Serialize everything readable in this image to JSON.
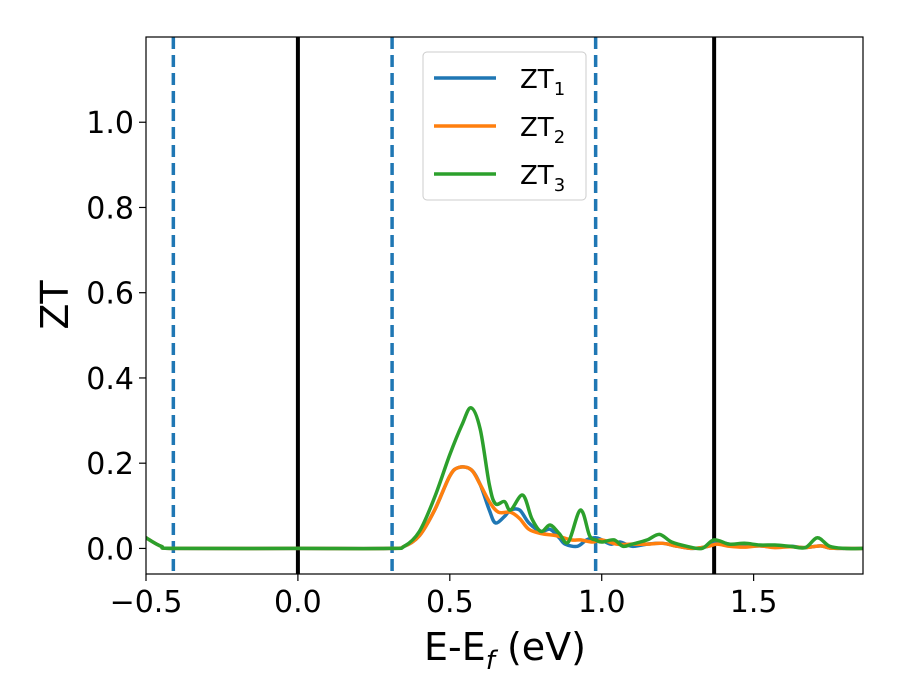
{
  "chart_data": {
    "type": "line",
    "xlabel": {
      "main": "E-E",
      "sub": "f",
      "rest": " (eV)"
    },
    "ylabel": "ZT",
    "xlim": [
      -0.5,
      1.86
    ],
    "ylim": [
      -0.06,
      1.2
    ],
    "xticks": [
      -0.5,
      0.0,
      0.5,
      1.0,
      1.5
    ],
    "xtick_labels": [
      "−0.5",
      "0.0",
      "0.5",
      "1.0",
      "1.5"
    ],
    "yticks": [
      0.0,
      0.2,
      0.4,
      0.6,
      0.8,
      1.0
    ],
    "ytick_labels": [
      "0.0",
      "0.2",
      "0.4",
      "0.6",
      "0.8",
      "1.0"
    ],
    "grid": false,
    "legend_placement": "top-center",
    "vlines": [
      {
        "x": -0.41,
        "style": "dashed",
        "color": "#1f77b4"
      },
      {
        "x": 0.0,
        "style": "solid",
        "color": "#000000"
      },
      {
        "x": 0.31,
        "style": "dashed",
        "color": "#1f77b4"
      },
      {
        "x": 0.98,
        "style": "dashed",
        "color": "#1f77b4"
      },
      {
        "x": 1.37,
        "style": "solid",
        "color": "#000000"
      }
    ],
    "series": [
      {
        "name": "ZT",
        "name_sub": "1",
        "color": "#1f77b4",
        "points": [
          [
            -0.5,
            0.025
          ],
          [
            -0.45,
            0.005
          ],
          [
            -0.4,
            0.0
          ],
          [
            0.0,
            0.0
          ],
          [
            0.3,
            0.0
          ],
          [
            0.35,
            0.005
          ],
          [
            0.4,
            0.03
          ],
          [
            0.45,
            0.09
          ],
          [
            0.5,
            0.17
          ],
          [
            0.53,
            0.19
          ],
          [
            0.57,
            0.185
          ],
          [
            0.6,
            0.15
          ],
          [
            0.63,
            0.09
          ],
          [
            0.65,
            0.06
          ],
          [
            0.68,
            0.075
          ],
          [
            0.7,
            0.09
          ],
          [
            0.73,
            0.09
          ],
          [
            0.76,
            0.06
          ],
          [
            0.8,
            0.04
          ],
          [
            0.83,
            0.045
          ],
          [
            0.86,
            0.025
          ],
          [
            0.88,
            0.01
          ],
          [
            0.92,
            0.005
          ],
          [
            0.95,
            0.02
          ],
          [
            0.98,
            0.025
          ],
          [
            1.0,
            0.02
          ],
          [
            1.03,
            0.01
          ],
          [
            1.06,
            0.015
          ],
          [
            1.1,
            0.005
          ],
          [
            1.15,
            0.01
          ],
          [
            1.2,
            0.012
          ],
          [
            1.25,
            0.005
          ],
          [
            1.3,
            0.0
          ],
          [
            1.35,
            0.005
          ],
          [
            1.38,
            0.015
          ],
          [
            1.42,
            0.01
          ],
          [
            1.47,
            0.005
          ],
          [
            1.52,
            0.006
          ],
          [
            1.57,
            0.003
          ],
          [
            1.62,
            0.005
          ],
          [
            1.67,
            0.002
          ],
          [
            1.72,
            0.006
          ],
          [
            1.75,
            0.001
          ],
          [
            1.8,
            0.0
          ],
          [
            1.86,
            0.0
          ]
        ]
      },
      {
        "name": "ZT",
        "name_sub": "2",
        "color": "#ff7f0e",
        "points": [
          [
            -0.5,
            0.025
          ],
          [
            -0.45,
            0.005
          ],
          [
            -0.4,
            0.0
          ],
          [
            0.0,
            0.0
          ],
          [
            0.3,
            0.0
          ],
          [
            0.35,
            0.005
          ],
          [
            0.4,
            0.03
          ],
          [
            0.45,
            0.09
          ],
          [
            0.5,
            0.17
          ],
          [
            0.53,
            0.19
          ],
          [
            0.57,
            0.185
          ],
          [
            0.6,
            0.15
          ],
          [
            0.63,
            0.11
          ],
          [
            0.66,
            0.085
          ],
          [
            0.7,
            0.085
          ],
          [
            0.73,
            0.07
          ],
          [
            0.76,
            0.045
          ],
          [
            0.8,
            0.035
          ],
          [
            0.85,
            0.03
          ],
          [
            0.9,
            0.02
          ],
          [
            0.93,
            0.02
          ],
          [
            0.97,
            0.015
          ],
          [
            1.0,
            0.02
          ],
          [
            1.05,
            0.01
          ],
          [
            1.1,
            0.01
          ],
          [
            1.15,
            0.01
          ],
          [
            1.2,
            0.012
          ],
          [
            1.25,
            0.005
          ],
          [
            1.3,
            0.0
          ],
          [
            1.35,
            0.005
          ],
          [
            1.38,
            0.01
          ],
          [
            1.42,
            0.005
          ],
          [
            1.47,
            0.003
          ],
          [
            1.52,
            0.006
          ],
          [
            1.57,
            0.002
          ],
          [
            1.62,
            0.004
          ],
          [
            1.67,
            0.002
          ],
          [
            1.72,
            0.006
          ],
          [
            1.75,
            0.001
          ],
          [
            1.8,
            0.0
          ],
          [
            1.86,
            0.0
          ]
        ]
      },
      {
        "name": "ZT",
        "name_sub": "3",
        "color": "#2ca02c",
        "points": [
          [
            -0.5,
            0.025
          ],
          [
            -0.45,
            0.005
          ],
          [
            -0.4,
            0.0
          ],
          [
            0.0,
            0.0
          ],
          [
            0.3,
            0.0
          ],
          [
            0.35,
            0.005
          ],
          [
            0.4,
            0.04
          ],
          [
            0.45,
            0.12
          ],
          [
            0.5,
            0.22
          ],
          [
            0.54,
            0.29
          ],
          [
            0.57,
            0.33
          ],
          [
            0.6,
            0.28
          ],
          [
            0.63,
            0.15
          ],
          [
            0.65,
            0.105
          ],
          [
            0.68,
            0.11
          ],
          [
            0.7,
            0.09
          ],
          [
            0.74,
            0.125
          ],
          [
            0.77,
            0.07
          ],
          [
            0.8,
            0.04
          ],
          [
            0.83,
            0.055
          ],
          [
            0.86,
            0.035
          ],
          [
            0.89,
            0.015
          ],
          [
            0.93,
            0.09
          ],
          [
            0.96,
            0.03
          ],
          [
            0.98,
            0.02
          ],
          [
            1.0,
            0.015
          ],
          [
            1.04,
            0.02
          ],
          [
            1.07,
            0.005
          ],
          [
            1.1,
            0.01
          ],
          [
            1.15,
            0.02
          ],
          [
            1.19,
            0.033
          ],
          [
            1.23,
            0.015
          ],
          [
            1.28,
            0.005
          ],
          [
            1.33,
            0.0
          ],
          [
            1.37,
            0.02
          ],
          [
            1.42,
            0.01
          ],
          [
            1.47,
            0.012
          ],
          [
            1.52,
            0.008
          ],
          [
            1.57,
            0.008
          ],
          [
            1.62,
            0.005
          ],
          [
            1.67,
            0.002
          ],
          [
            1.71,
            0.025
          ],
          [
            1.75,
            0.005
          ],
          [
            1.8,
            0.0
          ],
          [
            1.86,
            0.0
          ]
        ]
      }
    ]
  }
}
